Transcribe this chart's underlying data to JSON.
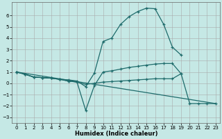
{
  "xlabel": "Humidex (Indice chaleur)",
  "background_color": "#c5e8e5",
  "line_color": "#1e6b6b",
  "xlim": [
    -0.5,
    23.5
  ],
  "ylim": [
    -3.5,
    7.2
  ],
  "yticks": [
    -3,
    -2,
    -1,
    0,
    1,
    2,
    3,
    4,
    5,
    6
  ],
  "xticks": [
    0,
    1,
    2,
    3,
    4,
    5,
    6,
    7,
    8,
    9,
    10,
    11,
    12,
    13,
    14,
    15,
    16,
    17,
    18,
    19,
    20,
    21,
    22,
    23
  ],
  "line_upper": {
    "x": [
      0,
      1,
      2,
      3,
      4,
      5,
      6,
      7,
      8,
      9,
      10,
      11,
      12,
      13,
      14,
      15,
      16,
      17,
      18,
      19
    ],
    "y": [
      1.0,
      0.8,
      0.55,
      0.5,
      0.45,
      0.35,
      0.3,
      0.2,
      -0.3,
      0.9,
      3.7,
      4.0,
      5.2,
      5.9,
      6.35,
      6.65,
      6.6,
      5.2,
      3.2,
      2.5
    ]
  },
  "line_dip": {
    "x": [
      0,
      1,
      2,
      3,
      4,
      5,
      6,
      7,
      8,
      9,
      10,
      11,
      12,
      13,
      14,
      15,
      16,
      17,
      18,
      19
    ],
    "y": [
      1.0,
      0.8,
      0.55,
      0.5,
      0.45,
      0.35,
      0.2,
      0.1,
      -2.4,
      -0.2,
      1.0,
      1.1,
      1.25,
      1.4,
      1.5,
      1.6,
      1.7,
      1.75,
      1.75,
      0.85
    ]
  },
  "line_flat": {
    "x": [
      0,
      1,
      2,
      3,
      4,
      5,
      6,
      7,
      8,
      9,
      10,
      11,
      12,
      13,
      14,
      15,
      16,
      17,
      18,
      19,
      20,
      21,
      22,
      23
    ],
    "y": [
      1.0,
      0.8,
      0.55,
      0.5,
      0.45,
      0.35,
      0.2,
      0.1,
      -0.1,
      0.0,
      0.1,
      0.15,
      0.2,
      0.25,
      0.3,
      0.35,
      0.4,
      0.4,
      0.4,
      0.85,
      -1.8,
      -1.8,
      -1.8,
      -1.8
    ]
  },
  "line_diag": {
    "x": [
      0,
      23
    ],
    "y": [
      1.0,
      -1.8
    ]
  }
}
